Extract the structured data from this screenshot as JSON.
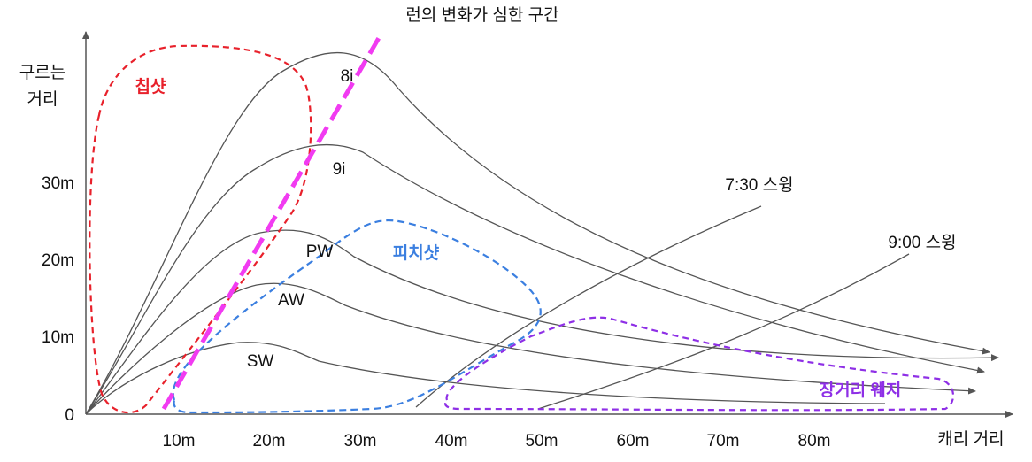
{
  "title": "런의 변화가 심한 구간",
  "y_axis_label_line1": "구르는",
  "y_axis_label_line2": "거리",
  "x_axis_label": "캐리 거리",
  "y_ticks": [
    "0",
    "10m",
    "20m",
    "30m"
  ],
  "x_ticks": [
    "10m",
    "20m",
    "30m",
    "40m",
    "50m",
    "60m",
    "70m",
    "80m"
  ],
  "club_labels": {
    "i8": "8i",
    "i9": "9i",
    "pw": "PW",
    "aw": "AW",
    "sw": "SW"
  },
  "swing_labels": {
    "s730": "7:30 스윙",
    "s900": "9:00 스윙"
  },
  "zones": {
    "chip": {
      "label": "칩샷",
      "color": "#e8212b"
    },
    "pitch": {
      "label": "피치샷",
      "color": "#3b7fe0"
    },
    "long_wedge": {
      "label": "장거리 웨지",
      "color": "#8e2fe6"
    },
    "run_change": {
      "color": "#f13bf1"
    }
  },
  "colors": {
    "axis": "#555555",
    "curve": "#555555",
    "text": "#111111"
  }
}
